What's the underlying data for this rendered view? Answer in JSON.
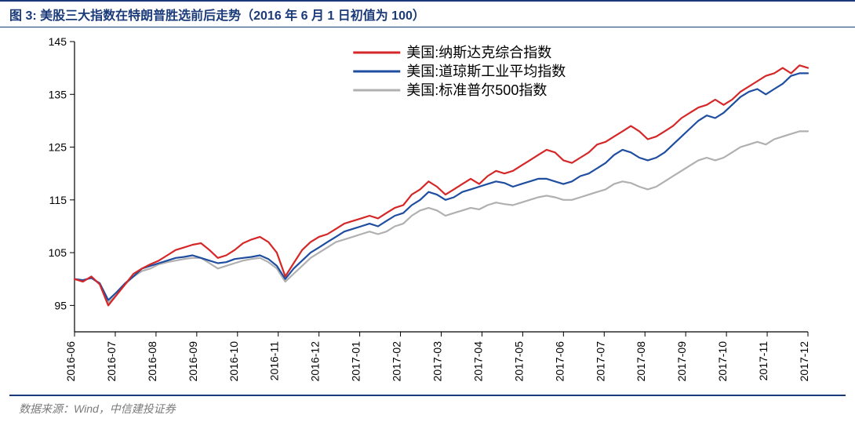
{
  "title": "图 3: 美股三大指数在特朗普胜选前后走势（2016 年 6 月 1 日初值为 100）",
  "source": "数据来源：Wind，中信建投证券",
  "chart": {
    "type": "line",
    "background_color": "#ffffff",
    "plot_border_color": "#000000",
    "yaxis": {
      "min": 90,
      "max": 145,
      "ticks": [
        95,
        105,
        115,
        125,
        135,
        145
      ],
      "tick_fontsize": 14,
      "grid": false
    },
    "xaxis": {
      "labels": [
        "2016-06",
        "2016-07",
        "2016-08",
        "2016-09",
        "2016-10",
        "2016-11",
        "2016-12",
        "2017-01",
        "2017-02",
        "2017-03",
        "2017-04",
        "2017-05",
        "2017-06",
        "2017-07",
        "2017-08",
        "2017-09",
        "2017-10",
        "2017-11",
        "2017-12"
      ],
      "tick_fontsize": 14,
      "rotation": -90
    },
    "legend": {
      "position": "top-center",
      "fontsize": 18,
      "items": [
        {
          "label": "美国:纳斯达克综合指数",
          "color": "#d62728"
        },
        {
          "label": "美国:道琼斯工业平均指数",
          "color": "#1f4ea1"
        },
        {
          "label": "美国:标准普尔500指数",
          "color": "#b0b0b0"
        }
      ]
    },
    "series": [
      {
        "name": "nasdaq",
        "color": "#d62728",
        "line_width": 2.2,
        "data": [
          100,
          99.5,
          100.5,
          99,
          95,
          97,
          99,
          101,
          102,
          102.8,
          103.5,
          104.5,
          105.5,
          106,
          106.5,
          106.8,
          105.5,
          104,
          104.5,
          105.5,
          106.8,
          107.5,
          108,
          107,
          105,
          100.5,
          103,
          105.5,
          107,
          108,
          108.5,
          109.5,
          110.5,
          111,
          111.5,
          112,
          111.5,
          112.5,
          113.5,
          114,
          116,
          117,
          118.5,
          117.5,
          116,
          117,
          118,
          119,
          118,
          119.5,
          120.5,
          120,
          120.5,
          121.5,
          122.5,
          123.5,
          124.5,
          124,
          122.5,
          122,
          123,
          124,
          125.5,
          126,
          127,
          128,
          129,
          128,
          126.5,
          127,
          128,
          129,
          130.5,
          131.5,
          132.5,
          133,
          134,
          133,
          134,
          135.5,
          136.5,
          137.5,
          138.5,
          139,
          140,
          139,
          140.5,
          140
        ]
      },
      {
        "name": "dow",
        "color": "#1f4ea1",
        "line_width": 2.2,
        "data": [
          100,
          99.8,
          100.2,
          99.2,
          96,
          97.5,
          99.2,
          100.5,
          102,
          102.5,
          103,
          103.5,
          104,
          104.2,
          104.5,
          104,
          103.5,
          103,
          103.2,
          103.8,
          104,
          104.2,
          104.5,
          103.8,
          102.5,
          100,
          102,
          103.5,
          105,
          106,
          107,
          108,
          109,
          109.5,
          110,
          110.5,
          110,
          111,
          112,
          112.5,
          114,
          115,
          116.5,
          116,
          115,
          115.5,
          116.5,
          117,
          117.5,
          118,
          118.5,
          118.2,
          117.5,
          118,
          118.5,
          119,
          119,
          118.5,
          118,
          118.5,
          119.5,
          120,
          121,
          122,
          123.5,
          124.5,
          124,
          123,
          122.5,
          123,
          124,
          125.5,
          127,
          128.5,
          130,
          131,
          130.5,
          131.5,
          133,
          134.5,
          135.5,
          136,
          135,
          136,
          137,
          138.5,
          139,
          139
        ]
      },
      {
        "name": "sp500",
        "color": "#b0b0b0",
        "line_width": 2.2,
        "data": [
          100,
          99.7,
          100.3,
          99,
          95.5,
          97,
          99,
          100.5,
          101.5,
          102,
          102.8,
          103.2,
          103.5,
          103.8,
          104,
          104,
          103,
          102,
          102.5,
          103,
          103.5,
          103.8,
          104,
          103.2,
          102,
          99.5,
          101,
          102.5,
          104,
          105,
          106,
          107,
          107.5,
          108,
          108.5,
          109,
          108.5,
          109,
          110,
          110.5,
          112,
          113,
          113.5,
          113,
          112,
          112.5,
          113,
          113.5,
          113.2,
          114,
          114.5,
          114.2,
          114,
          114.5,
          115,
          115.5,
          115.8,
          115.5,
          115,
          115,
          115.5,
          116,
          116.5,
          117,
          118,
          118.5,
          118.2,
          117.5,
          117,
          117.5,
          118.5,
          119.5,
          120.5,
          121.5,
          122.5,
          123,
          122.5,
          123,
          124,
          125,
          125.5,
          126,
          125.5,
          126.5,
          127,
          127.5,
          128,
          128
        ]
      }
    ]
  }
}
